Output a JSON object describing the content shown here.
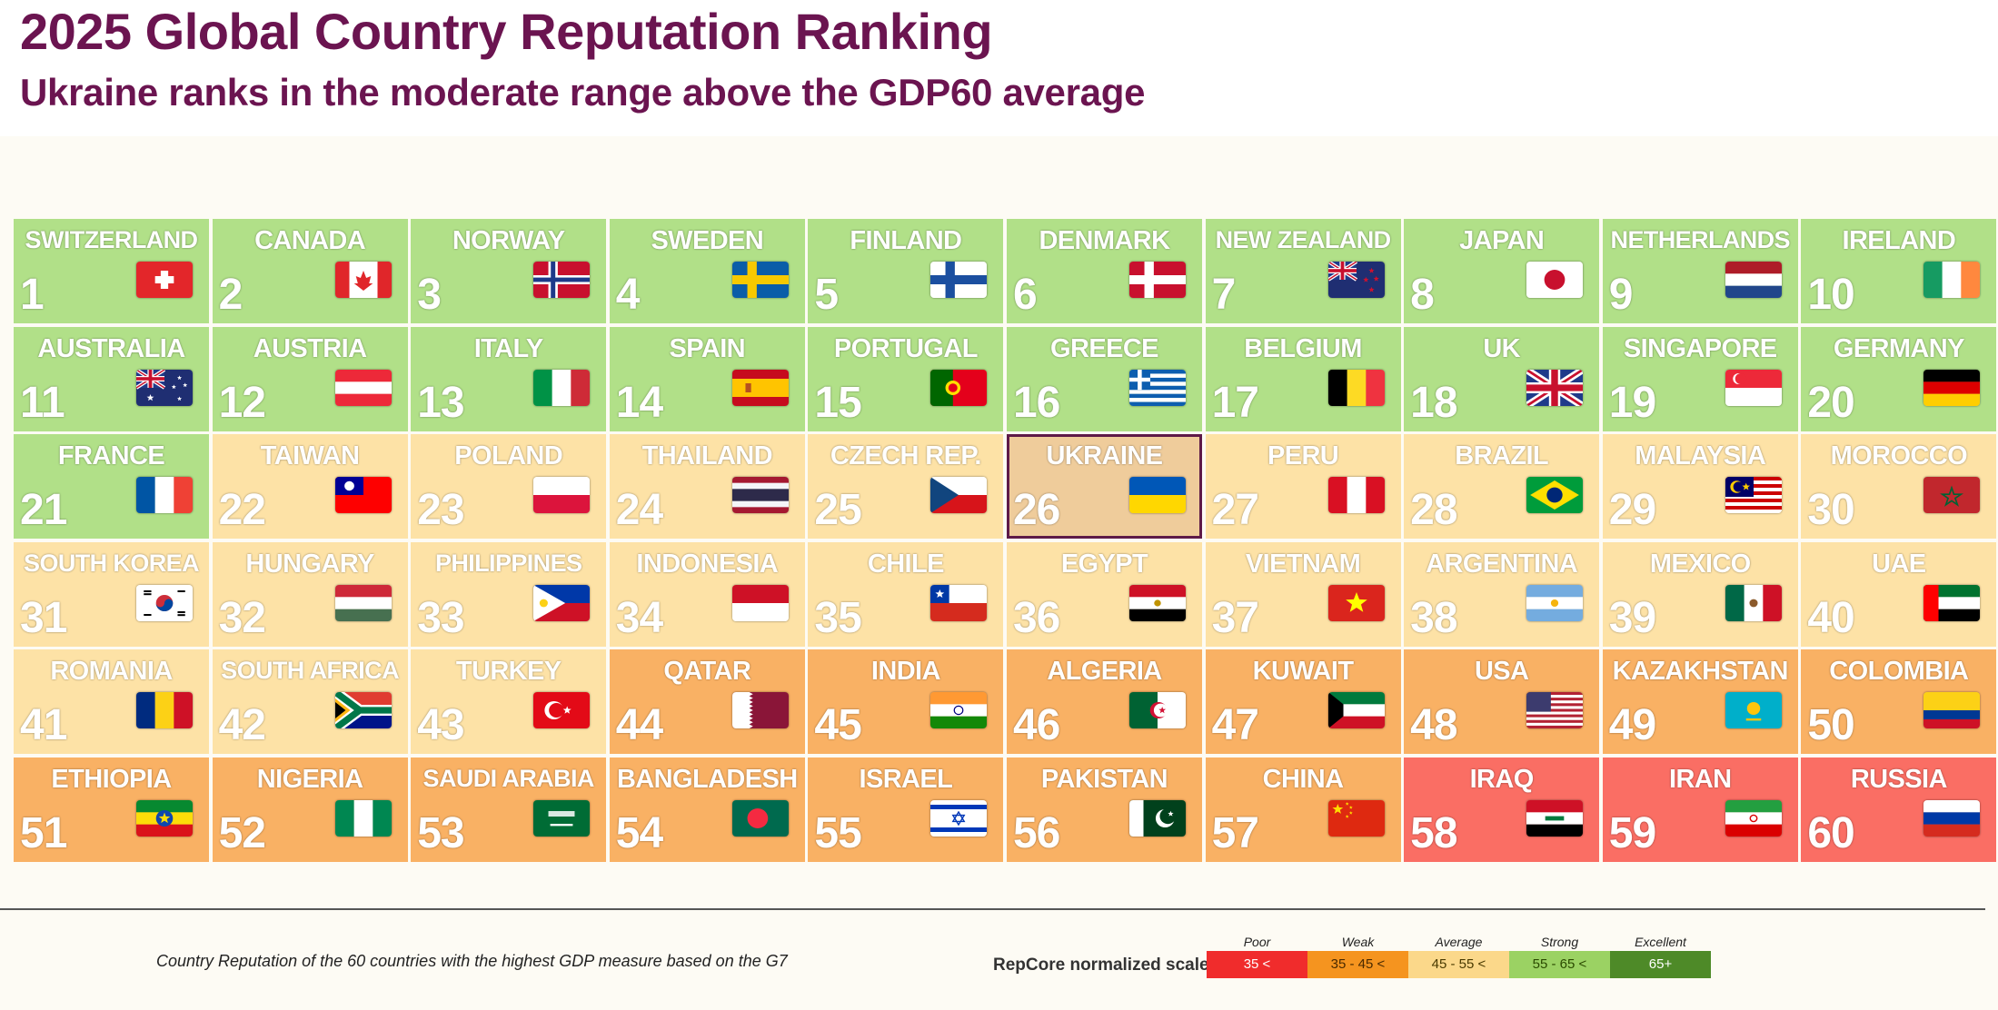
{
  "title": "2025 Global Country Reputation Ranking",
  "subtitle": "Ukraine ranks in the moderate range above the GDP60 average",
  "footnote": "Country Reputation of the 60 countries with the highest GDP measure based on the G7",
  "scale": {
    "label": "RepCore normalized scale",
    "segments": [
      {
        "name": "Poor",
        "range": "35 <",
        "color": "#f02c2c",
        "text_color": "#ffffff"
      },
      {
        "name": "Weak",
        "range": "35 - 45 <",
        "color": "#f5941f",
        "text_color": "#4a2a00"
      },
      {
        "name": "Average",
        "range": "45 - 55 <",
        "color": "#fbd88a",
        "text_color": "#4a3a00"
      },
      {
        "name": "Strong",
        "range": "55 - 65 <",
        "color": "#9bd263",
        "text_color": "#2b4a00"
      },
      {
        "name": "Excellent",
        "range": "65+",
        "color": "#4e8a28",
        "text_color": "#ffffff"
      }
    ]
  },
  "colors": {
    "Strong": "#b1e088",
    "Average": "#fde2a6",
    "Weak": "#f9b164",
    "Poor": "#fa6e64",
    "highlight": "#efcc9b",
    "highlight_border": "#5e1a48"
  },
  "highlight_country": "UKRAINE",
  "chart_data": {
    "type": "table",
    "title": "2025 Global Country Reputation Ranking",
    "subtitle": "Ukraine ranks in the moderate range above the GDP60 average",
    "columns": 10,
    "countries": [
      {
        "rank": 1,
        "name": "SWITZERLAND",
        "category": "Strong",
        "flag": "switzerland-flag-icon"
      },
      {
        "rank": 2,
        "name": "CANADA",
        "category": "Strong",
        "flag": "canada-flag-icon"
      },
      {
        "rank": 3,
        "name": "NORWAY",
        "category": "Strong",
        "flag": "norway-flag-icon"
      },
      {
        "rank": 4,
        "name": "SWEDEN",
        "category": "Strong",
        "flag": "sweden-flag-icon"
      },
      {
        "rank": 5,
        "name": "FINLAND",
        "category": "Strong",
        "flag": "finland-flag-icon"
      },
      {
        "rank": 6,
        "name": "DENMARK",
        "category": "Strong",
        "flag": "denmark-flag-icon"
      },
      {
        "rank": 7,
        "name": "NEW ZEALAND",
        "category": "Strong",
        "flag": "new-zealand-flag-icon"
      },
      {
        "rank": 8,
        "name": "JAPAN",
        "category": "Strong",
        "flag": "japan-flag-icon"
      },
      {
        "rank": 9,
        "name": "NETHERLANDS",
        "category": "Strong",
        "flag": "netherlands-flag-icon"
      },
      {
        "rank": 10,
        "name": "IRELAND",
        "category": "Strong",
        "flag": "ireland-flag-icon"
      },
      {
        "rank": 11,
        "name": "AUSTRALIA",
        "category": "Strong",
        "flag": "australia-flag-icon"
      },
      {
        "rank": 12,
        "name": "AUSTRIA",
        "category": "Strong",
        "flag": "austria-flag-icon"
      },
      {
        "rank": 13,
        "name": "ITALY",
        "category": "Strong",
        "flag": "italy-flag-icon"
      },
      {
        "rank": 14,
        "name": "SPAIN",
        "category": "Strong",
        "flag": "spain-flag-icon"
      },
      {
        "rank": 15,
        "name": "PORTUGAL",
        "category": "Strong",
        "flag": "portugal-flag-icon"
      },
      {
        "rank": 16,
        "name": "GREECE",
        "category": "Strong",
        "flag": "greece-flag-icon"
      },
      {
        "rank": 17,
        "name": "BELGIUM",
        "category": "Strong",
        "flag": "belgium-flag-icon"
      },
      {
        "rank": 18,
        "name": "UK",
        "category": "Strong",
        "flag": "uk-flag-icon"
      },
      {
        "rank": 19,
        "name": "SINGAPORE",
        "category": "Strong",
        "flag": "singapore-flag-icon"
      },
      {
        "rank": 20,
        "name": "GERMANY",
        "category": "Strong",
        "flag": "germany-flag-icon"
      },
      {
        "rank": 21,
        "name": "FRANCE",
        "category": "Strong",
        "flag": "france-flag-icon"
      },
      {
        "rank": 22,
        "name": "TAIWAN",
        "category": "Average",
        "flag": "taiwan-flag-icon"
      },
      {
        "rank": 23,
        "name": "POLAND",
        "category": "Average",
        "flag": "poland-flag-icon"
      },
      {
        "rank": 24,
        "name": "THAILAND",
        "category": "Average",
        "flag": "thailand-flag-icon"
      },
      {
        "rank": 25,
        "name": "CZECH REP.",
        "category": "Average",
        "flag": "czech-flag-icon"
      },
      {
        "rank": 26,
        "name": "UKRAINE",
        "category": "Average",
        "flag": "ukraine-flag-icon"
      },
      {
        "rank": 27,
        "name": "PERU",
        "category": "Average",
        "flag": "peru-flag-icon"
      },
      {
        "rank": 28,
        "name": "BRAZIL",
        "category": "Average",
        "flag": "brazil-flag-icon"
      },
      {
        "rank": 29,
        "name": "MALAYSIA",
        "category": "Average",
        "flag": "malaysia-flag-icon"
      },
      {
        "rank": 30,
        "name": "MOROCCO",
        "category": "Average",
        "flag": "morocco-flag-icon"
      },
      {
        "rank": 31,
        "name": "SOUTH KOREA",
        "category": "Average",
        "flag": "south-korea-flag-icon"
      },
      {
        "rank": 32,
        "name": "HUNGARY",
        "category": "Average",
        "flag": "hungary-flag-icon"
      },
      {
        "rank": 33,
        "name": "PHILIPPINES",
        "category": "Average",
        "flag": "philippines-flag-icon"
      },
      {
        "rank": 34,
        "name": "INDONESIA",
        "category": "Average",
        "flag": "indonesia-flag-icon"
      },
      {
        "rank": 35,
        "name": "CHILE",
        "category": "Average",
        "flag": "chile-flag-icon"
      },
      {
        "rank": 36,
        "name": "EGYPT",
        "category": "Average",
        "flag": "egypt-flag-icon"
      },
      {
        "rank": 37,
        "name": "VIETNAM",
        "category": "Average",
        "flag": "vietnam-flag-icon"
      },
      {
        "rank": 38,
        "name": "ARGENTINA",
        "category": "Average",
        "flag": "argentina-flag-icon"
      },
      {
        "rank": 39,
        "name": "MEXICO",
        "category": "Average",
        "flag": "mexico-flag-icon"
      },
      {
        "rank": 40,
        "name": "UAE",
        "category": "Average",
        "flag": "uae-flag-icon"
      },
      {
        "rank": 41,
        "name": "ROMANIA",
        "category": "Average",
        "flag": "romania-flag-icon"
      },
      {
        "rank": 42,
        "name": "SOUTH AFRICA",
        "category": "Average",
        "flag": "south-africa-flag-icon"
      },
      {
        "rank": 43,
        "name": "TURKEY",
        "category": "Average",
        "flag": "turkey-flag-icon"
      },
      {
        "rank": 44,
        "name": "QATAR",
        "category": "Weak",
        "flag": "qatar-flag-icon"
      },
      {
        "rank": 45,
        "name": "INDIA",
        "category": "Weak",
        "flag": "india-flag-icon"
      },
      {
        "rank": 46,
        "name": "ALGERIA",
        "category": "Weak",
        "flag": "algeria-flag-icon"
      },
      {
        "rank": 47,
        "name": "KUWAIT",
        "category": "Weak",
        "flag": "kuwait-flag-icon"
      },
      {
        "rank": 48,
        "name": "USA",
        "category": "Weak",
        "flag": "usa-flag-icon"
      },
      {
        "rank": 49,
        "name": "KAZAKHSTAN",
        "category": "Weak",
        "flag": "kazakhstan-flag-icon"
      },
      {
        "rank": 50,
        "name": "COLOMBIA",
        "category": "Weak",
        "flag": "colombia-flag-icon"
      },
      {
        "rank": 51,
        "name": "ETHIOPIA",
        "category": "Weak",
        "flag": "ethiopia-flag-icon"
      },
      {
        "rank": 52,
        "name": "NIGERIA",
        "category": "Weak",
        "flag": "nigeria-flag-icon"
      },
      {
        "rank": 53,
        "name": "SAUDI ARABIA",
        "category": "Weak",
        "flag": "saudi-arabia-flag-icon"
      },
      {
        "rank": 54,
        "name": "BANGLADESH",
        "category": "Weak",
        "flag": "bangladesh-flag-icon"
      },
      {
        "rank": 55,
        "name": "ISRAEL",
        "category": "Weak",
        "flag": "israel-flag-icon"
      },
      {
        "rank": 56,
        "name": "PAKISTAN",
        "category": "Weak",
        "flag": "pakistan-flag-icon"
      },
      {
        "rank": 57,
        "name": "CHINA",
        "category": "Weak",
        "flag": "china-flag-icon"
      },
      {
        "rank": 58,
        "name": "IRAQ",
        "category": "Poor",
        "flag": "iraq-flag-icon"
      },
      {
        "rank": 59,
        "name": "IRAN",
        "category": "Poor",
        "flag": "iran-flag-icon"
      },
      {
        "rank": 60,
        "name": "RUSSIA",
        "category": "Poor",
        "flag": "russia-flag-icon"
      }
    ]
  }
}
